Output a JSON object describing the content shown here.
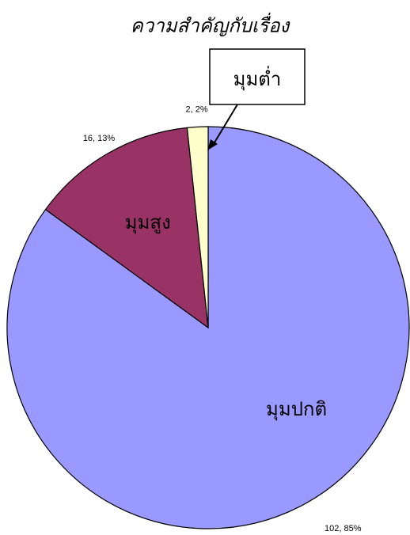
{
  "chart_data": {
    "type": "pie",
    "title": "ความสำคัญกับเรื่อง",
    "categories": [
      "มุมปกติ",
      "มุมสูง",
      "มุมต่ำ"
    ],
    "values": [
      102,
      16,
      2
    ],
    "value_labels": [
      "102, 85%",
      "16, 13%",
      "2, 2%"
    ],
    "colors": [
      "#9999ff",
      "#993366",
      "#ffffcc"
    ]
  }
}
